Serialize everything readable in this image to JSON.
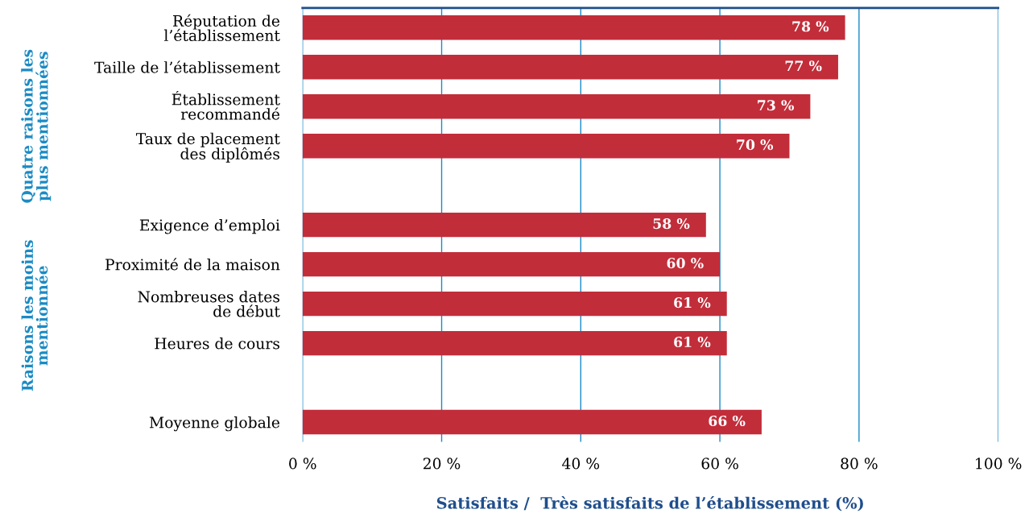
{
  "chart_data": {
    "type": "bar",
    "orientation": "horizontal",
    "categories": [
      "Réputation de\nl’établissement",
      "Taille de l’établissement",
      "Établissement\nrecommandé",
      "Taux de placement\ndes diplômés",
      null,
      "Exigence d’emploi",
      "Proximité de la maison",
      "Nombreuses dates\nde début",
      "Heures de cours",
      null,
      "Moyenne globale"
    ],
    "values": [
      78,
      77,
      73,
      70,
      null,
      58,
      60,
      61,
      61,
      null,
      66
    ],
    "value_labels": [
      "78 %",
      "77 %",
      "73 %",
      "70 %",
      null,
      "58 %",
      "60 %",
      "61 %",
      "61 %",
      null,
      "66 %"
    ],
    "color": "#c22d3a",
    "xlabel": "Satisfaits /  Très satisfaits de l’établissement (%)",
    "xlim": [
      0,
      100
    ],
    "xticks": [
      {
        "value": 0,
        "label": "0 %"
      },
      {
        "value": 20,
        "label": "20 %"
      },
      {
        "value": 40,
        "label": "40 %"
      },
      {
        "value": 60,
        "label": "60 %"
      },
      {
        "value": 80,
        "label": "80 %"
      },
      {
        "value": 100,
        "label": "100 %"
      }
    ],
    "annotations": [
      "Quatre raisons les\nplus mentionnées",
      "Raisons les moins\nmentionnée"
    ],
    "grid": "x",
    "legend": false
  }
}
